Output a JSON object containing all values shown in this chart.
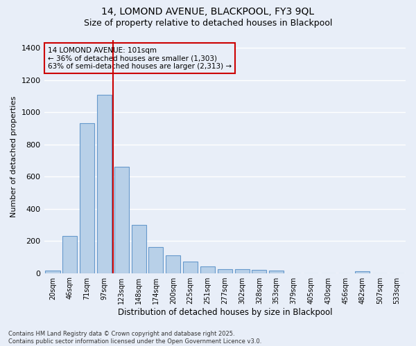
{
  "title1": "14, LOMOND AVENUE, BLACKPOOL, FY3 9QL",
  "title2": "Size of property relative to detached houses in Blackpool",
  "xlabel": "Distribution of detached houses by size in Blackpool",
  "ylabel": "Number of detached properties",
  "categories": [
    "20sqm",
    "46sqm",
    "71sqm",
    "97sqm",
    "123sqm",
    "148sqm",
    "174sqm",
    "200sqm",
    "225sqm",
    "251sqm",
    "277sqm",
    "302sqm",
    "328sqm",
    "353sqm",
    "379sqm",
    "405sqm",
    "430sqm",
    "456sqm",
    "482sqm",
    "507sqm",
    "533sqm"
  ],
  "values": [
    15,
    230,
    930,
    1110,
    660,
    300,
    160,
    110,
    70,
    40,
    25,
    22,
    20,
    15,
    0,
    0,
    0,
    0,
    10,
    0,
    0
  ],
  "bar_color": "#b8d0e8",
  "bar_edge_color": "#6699cc",
  "bg_color": "#e8eef8",
  "grid_color": "#ffffff",
  "vline_color": "#cc0000",
  "annotation_text": "14 LOMOND AVENUE: 101sqm\n← 36% of detached houses are smaller (1,303)\n63% of semi-detached houses are larger (2,313) →",
  "annotation_box_color": "#cc0000",
  "ylim": [
    0,
    1450
  ],
  "yticks": [
    0,
    200,
    400,
    600,
    800,
    1000,
    1200,
    1400
  ],
  "vline_pos": 3.5,
  "footer": "Contains HM Land Registry data © Crown copyright and database right 2025.\nContains public sector information licensed under the Open Government Licence v3.0."
}
